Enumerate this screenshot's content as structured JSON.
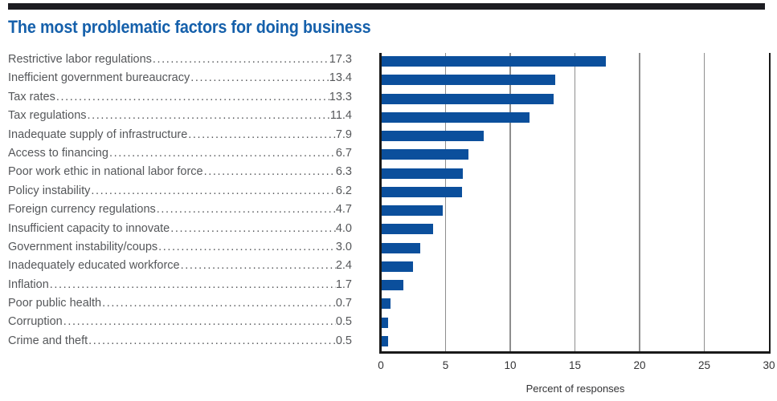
{
  "figure": {
    "title": "The most problematic factors for doing business"
  },
  "colors": {
    "title_blue": "#1560ab",
    "bar_blue": "#0b4f9c",
    "top_rule": "#1d1d22",
    "list_text": "#55575a",
    "gridline": "#8e8e8e",
    "axis": "#1a1a1a",
    "tick_text": "#333335"
  },
  "chart_data": {
    "type": "bar",
    "orientation": "horizontal",
    "title": "The most problematic factors for doing business",
    "categories": [
      "Restrictive labor regulations",
      "Inefficient government bureaucracy",
      "Tax rates",
      "Tax regulations",
      "Inadequate supply of infrastructure",
      "Access to financing",
      "Poor work ethic in national labor force",
      "Policy instability",
      "Foreign currency regulations",
      "Insufficient capacity to innovate",
      "Government instability/coups",
      "Inadequately educated workforce",
      "Inflation",
      "Poor public health",
      "Corruption",
      "Crime and theft"
    ],
    "values": [
      17.3,
      13.4,
      13.3,
      11.4,
      7.9,
      6.7,
      6.3,
      6.2,
      4.7,
      4.0,
      3.0,
      2.4,
      1.7,
      0.7,
      0.5,
      0.5
    ],
    "value_labels": [
      "17.3",
      "13.4",
      "13.3",
      "11.4",
      "7.9",
      "6.7",
      "6.3",
      "6.2",
      "4.7",
      "4.0",
      "3.0",
      "2.4",
      "1.7",
      "0.7",
      "0.5",
      "0.5"
    ],
    "xlabel": "Percent of responses",
    "xlim": [
      0,
      30
    ],
    "xticks": [
      0,
      5,
      10,
      15,
      20,
      25,
      30
    ],
    "grid": true,
    "legend": false
  }
}
